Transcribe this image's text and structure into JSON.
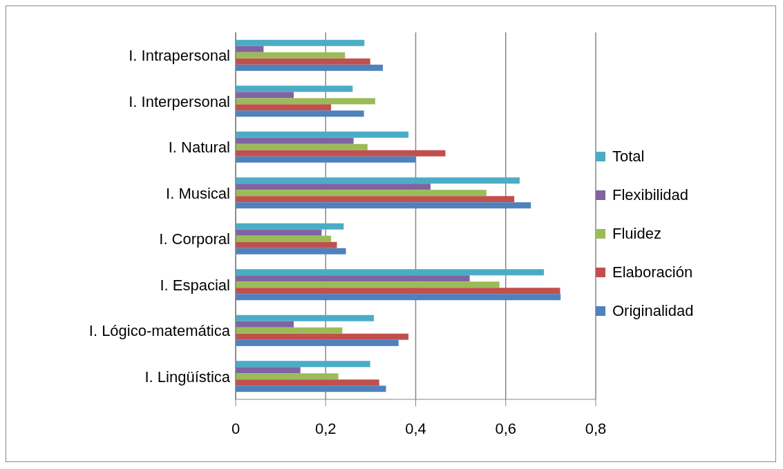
{
  "chart_data": {
    "type": "bar",
    "orientation": "horizontal",
    "categories": [
      "I. Intrapersonal",
      "I. Interpersonal",
      "I. Natural",
      "I. Musical",
      "I. Corporal",
      "I. Espacial",
      "I. Lógico-matemática",
      "I. Lingüística"
    ],
    "series": [
      {
        "name": "Total",
        "color": "#4bacc6",
        "values": [
          0.286,
          0.26,
          0.384,
          0.631,
          0.24,
          0.685,
          0.307,
          0.299
        ]
      },
      {
        "name": "Flexibilidad",
        "color": "#8064a2",
        "values": [
          0.062,
          0.129,
          0.262,
          0.433,
          0.191,
          0.52,
          0.129,
          0.144
        ]
      },
      {
        "name": "Fluidez",
        "color": "#9bbb59",
        "values": [
          0.243,
          0.31,
          0.293,
          0.557,
          0.212,
          0.586,
          0.237,
          0.228
        ]
      },
      {
        "name": "Elaboración",
        "color": "#c0504d",
        "values": [
          0.299,
          0.212,
          0.466,
          0.619,
          0.225,
          0.721,
          0.384,
          0.319
        ]
      },
      {
        "name": "Originalidad",
        "color": "#4f81bd",
        "values": [
          0.327,
          0.285,
          0.4,
          0.656,
          0.245,
          0.722,
          0.362,
          0.334
        ]
      }
    ],
    "xlim": [
      0,
      0.8
    ],
    "xticks": [
      0,
      {
        "value": 0.2,
        "label": "0,2"
      },
      {
        "value": 0.4,
        "label": "0,4"
      },
      {
        "value": 0.6,
        "label": "0,6"
      },
      {
        "value": 0.8,
        "label": "0,8"
      }
    ],
    "grid": "x",
    "legend": "right"
  }
}
